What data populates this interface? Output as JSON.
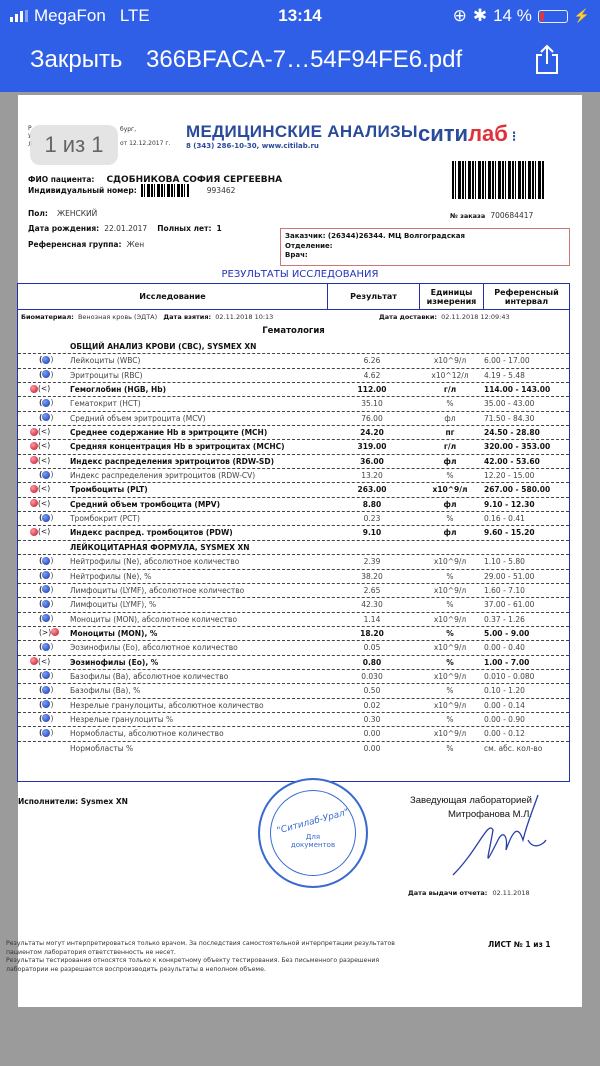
{
  "status_bar": {
    "carrier": "MegaFon",
    "network": "LTE",
    "time": "13:14",
    "battery": "14 %",
    "battery_level": 14
  },
  "nav": {
    "close_label": "Закрыть",
    "title": "366BFACA-7…54F94FE6.pdf",
    "share_icon": "share-icon"
  },
  "page_indicator": "1 из 1",
  "doc": {
    "header_fragments": [
      "Р",
      "бург,",
      "У",
      "Л",
      "от 12.12.2017 г."
    ],
    "brand_title": "МЕДИЦИНСКИЕ АНАЛИЗЫ",
    "brand_contacts": "8 (343) 286-10-30, www.citilab.ru",
    "logo_a": "сити",
    "logo_b": "лаб",
    "patient": {
      "name_label": "ФИО пациента:",
      "name": "СДОБНИКОВА СОФИЯ СЕРГЕЕВНА",
      "id_label": "Индивидуальный номер:",
      "id": "993462",
      "sex_label": "Пол:",
      "sex": "ЖЕНСКИЙ",
      "dob_label": "Дата рождения:",
      "dob": "22.01.2017",
      "age_label": "Полных лет:",
      "age": "1",
      "ref_group_label": "Референсная группа:",
      "ref_group": "Жен"
    },
    "order_label": "№ заказа",
    "order_no": "700684417",
    "customer": {
      "customer": "Заказчик: (26344)26344. МЦ Волгоградская",
      "department": "Отделение:",
      "doctor": "Врач:"
    },
    "results_title": "РЕЗУЛЬТАТЫ ИССЛЕДОВАНИЯ",
    "columns": [
      "Исследование",
      "Результат",
      "Единицы измерения",
      "Референсный интервал"
    ],
    "meta": {
      "bio_label": "Биоматериал:",
      "bio": "Венозная кровь (ЭДТА)",
      "taken_label": "Дата взятия:",
      "taken": "02.11.2018 10:13",
      "delivered_label": "Дата доставки:",
      "delivered": "02.11.2018 12:09:43"
    },
    "section": "Гематология",
    "rows": [
      {
        "type": "head",
        "name": "ОБЩИЙ АНАЛИЗ КРОВИ (CBC), SYSMEX XN"
      },
      {
        "flag": "normal",
        "name": "Лейкоциты (WBC)",
        "result": "6.26",
        "unit": "x10^9/л",
        "ref": "6.00 - 17.00"
      },
      {
        "flag": "normal",
        "name": "Эритроциты (RBC)",
        "result": "4.62",
        "unit": "x10^12/л",
        "ref": "4.19 - 5.48"
      },
      {
        "flag": "low",
        "name": "Гемоглобин (HGB, Hb)",
        "result": "112.00",
        "unit": "г/л",
        "ref": "114.00 - 143.00"
      },
      {
        "flag": "normal",
        "name": "Гематокрит (HCT)",
        "result": "35.10",
        "unit": "%",
        "ref": "35.00 - 43.00"
      },
      {
        "flag": "normal",
        "name": "Средний объем эритроцита (MCV)",
        "result": "76.00",
        "unit": "фл",
        "ref": "71.50 - 84.30"
      },
      {
        "flag": "low",
        "name": "Среднее содержание Hb в эритроците (MCH)",
        "result": "24.20",
        "unit": "пг",
        "ref": "24.50 - 28.80"
      },
      {
        "flag": "low",
        "name": "Средняя концентрация Hb в эритроцитах (MCHC)",
        "result": "319.00",
        "unit": "г/л",
        "ref": "320.00 - 353.00"
      },
      {
        "flag": "low",
        "name": "Индекс распределения эритроцитов (RDW-SD)",
        "result": "36.00",
        "unit": "фл",
        "ref": "42.00 - 53.60"
      },
      {
        "flag": "normal",
        "name": "Индекс распределения эритроцитов (RDW-CV)",
        "result": "13.20",
        "unit": "%",
        "ref": "12.20 - 15.00"
      },
      {
        "flag": "low",
        "name": "Тромбоциты (PLT)",
        "result": "263.00",
        "unit": "x10^9/л",
        "ref": "267.00 - 580.00"
      },
      {
        "flag": "low",
        "name": "Средний объем тромбоцита (MPV)",
        "result": "8.80",
        "unit": "фл",
        "ref": "9.10 - 12.30"
      },
      {
        "flag": "normal",
        "name": "Тромбокрит (PCT)",
        "result": "0.23",
        "unit": "%",
        "ref": "0.16 - 0.41"
      },
      {
        "flag": "low",
        "name": "Индекс распред. тромбоцитов (PDW)",
        "result": "9.10",
        "unit": "фл",
        "ref": "9.60 - 15.20"
      },
      {
        "type": "head",
        "name": "ЛЕЙКОЦИТАРНАЯ ФОРМУЛА, SYSMEX XN"
      },
      {
        "flag": "normal",
        "name": "Нейтрофилы (Ne), абсолютное количество",
        "result": "2.39",
        "unit": "x10^9/л",
        "ref": "1.10 - 5.80"
      },
      {
        "flag": "normal",
        "name": "Нейтрофилы (Ne), %",
        "result": "38.20",
        "unit": "%",
        "ref": "29.00 - 51.00"
      },
      {
        "flag": "normal",
        "name": "Лимфоциты (LYMF), абсолютное количество",
        "result": "2.65",
        "unit": "x10^9/л",
        "ref": "1.60 - 7.10"
      },
      {
        "flag": "normal",
        "name": "Лимфоциты (LYMF), %",
        "result": "42.30",
        "unit": "%",
        "ref": "37.00 - 61.00"
      },
      {
        "flag": "normal",
        "name": "Моноциты (MON), абсолютное количество",
        "result": "1.14",
        "unit": "x10^9/л",
        "ref": "0.37 - 1.26"
      },
      {
        "flag": "high",
        "name": "Моноциты (MON), %",
        "result": "18.20",
        "unit": "%",
        "ref": "5.00 - 9.00"
      },
      {
        "flag": "normal",
        "name": "Эозинофилы (Eo), абсолютное количество",
        "result": "0.05",
        "unit": "x10^9/л",
        "ref": "0.00 - 0.40"
      },
      {
        "flag": "low",
        "name": "Эозинофилы (Eo), %",
        "result": "0.80",
        "unit": "%",
        "ref": "1.00 - 7.00"
      },
      {
        "flag": "normal",
        "name": "Базофилы (Ba), абсолютное количество",
        "result": "0.030",
        "unit": "x10^9/л",
        "ref": "0.010 - 0.080"
      },
      {
        "flag": "normal",
        "name": "Базофилы (Ba), %",
        "result": "0.50",
        "unit": "%",
        "ref": "0.10 - 1.20"
      },
      {
        "flag": "normal",
        "name": "Незрелые гранулоциты, абсолютное количество",
        "result": "0.02",
        "unit": "x10^9/л",
        "ref": "0.00 - 0.14"
      },
      {
        "flag": "normal",
        "name": "Незрелые гранулоциты %",
        "result": "0.30",
        "unit": "%",
        "ref": "0.00 - 0.90"
      },
      {
        "flag": "normal",
        "name": "Нормобласты, абсолютное количество",
        "result": "0.00",
        "unit": "x10^9/л",
        "ref": "0.00 - 0.12"
      },
      {
        "flag": "none",
        "name": "Нормобласты %",
        "result": "0.00",
        "unit": "%",
        "ref": "см. абс. кол-во"
      }
    ],
    "performers": "Исполнители: Sysmex XN",
    "head_title": "Заведующая лабораторией",
    "head_name": "Митрофанова М.Л.",
    "stamp": {
      "center": "Для документов",
      "name": "\"Ситилаб-Урал\""
    },
    "issue_label": "Дата выдачи отчета:",
    "issue_date": "02.11.2018",
    "disclaimer": [
      "Результаты могут интерпретироваться только врачом. За последствия самостоятельной интерпретации результатов",
      "пациентом лаборатория ответственность не несет.",
      "Результаты тестирования относятся только к конкретному объекту тестирования. Без письменного разрешения",
      "лаборатории не разрешается воспроизводить результаты в неполном объеме."
    ],
    "sheet": "ЛИСТ № 1 из 1"
  },
  "colors": {
    "nav_bg": "#2f5fe6",
    "table_border": "#2233aa",
    "flag_low_high": "#c0102a",
    "flag_normal": "#1833a0",
    "brand_blue": "#2a4a9a",
    "brand_red": "#e0303a"
  }
}
